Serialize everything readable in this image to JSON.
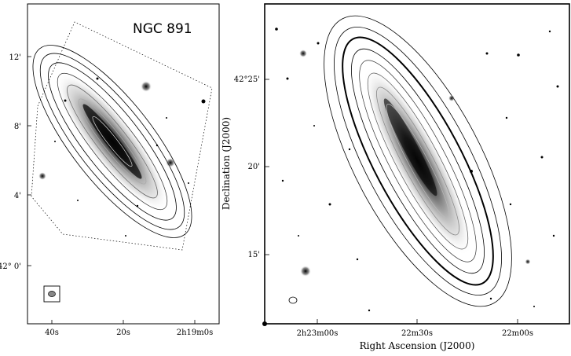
{
  "left_panel": {
    "title": "NGC 891",
    "dec_ticks": [
      "12'",
      "8'",
      "4'",
      "42° 0'"
    ],
    "ra_ticks": [
      "40s",
      "20s",
      "2h19m0s"
    ]
  },
  "right_panel": {
    "xlabel": "Right Ascension (J2000)",
    "ylabel": "Declination (J2000)",
    "dec_ticks": [
      "42°25'",
      "20'",
      "15'"
    ],
    "ra_ticks": [
      "2h23m00s",
      "22m30s",
      "22m00s"
    ]
  }
}
